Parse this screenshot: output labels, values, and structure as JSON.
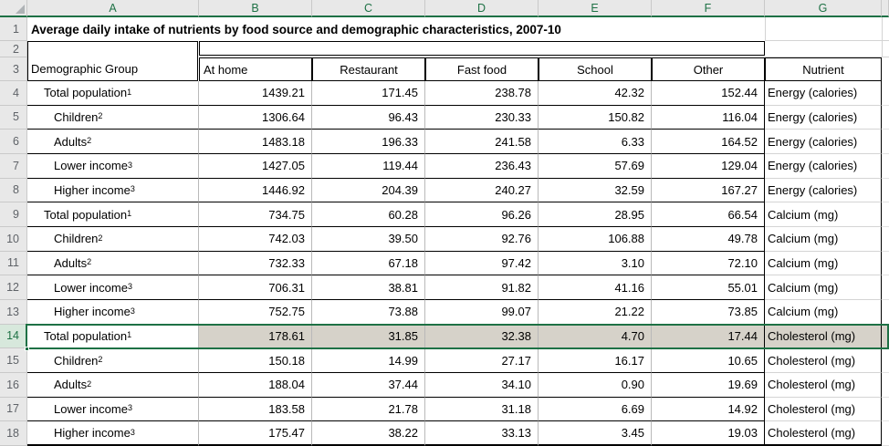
{
  "title": "Average daily intake of nutrients by food source and demographic characteristics, 2007-10",
  "grid": {
    "column_headers": [
      "A",
      "B",
      "C",
      "D",
      "E",
      "F",
      "G"
    ],
    "row_numbers": [
      "1",
      "2",
      "3",
      "4",
      "5",
      "6",
      "7",
      "8",
      "9",
      "10",
      "11",
      "12",
      "13",
      "14",
      "15",
      "16",
      "17",
      "18"
    ]
  },
  "table": {
    "group_header": "Demographic Group",
    "source_headers": [
      "At home",
      "Restaurant",
      "Fast food",
      "School",
      "Other"
    ],
    "nutrient_header": "Nutrient",
    "rows": [
      {
        "group": "Total population",
        "sup": "1",
        "indent": 0,
        "values": [
          "1439.21",
          "171.45",
          "238.78",
          "42.32",
          "152.44"
        ],
        "nutrient": "Energy (calories)"
      },
      {
        "group": "Children",
        "sup": "2",
        "indent": 1,
        "values": [
          "1306.64",
          "96.43",
          "230.33",
          "150.82",
          "116.04"
        ],
        "nutrient": "Energy (calories)"
      },
      {
        "group": "Adults",
        "sup": "2",
        "indent": 1,
        "values": [
          "1483.18",
          "196.33",
          "241.58",
          "6.33",
          "164.52"
        ],
        "nutrient": "Energy (calories)"
      },
      {
        "group": "Lower income",
        "sup": "3",
        "indent": 1,
        "values": [
          "1427.05",
          "119.44",
          "236.43",
          "57.69",
          "129.04"
        ],
        "nutrient": "Energy (calories)"
      },
      {
        "group": "Higher income",
        "sup": "3",
        "indent": 1,
        "values": [
          "1446.92",
          "204.39",
          "240.27",
          "32.59",
          "167.27"
        ],
        "nutrient": "Energy (calories)"
      },
      {
        "group": "Total population",
        "sup": "1",
        "indent": 0,
        "values": [
          "734.75",
          "60.28",
          "96.26",
          "28.95",
          "66.54"
        ],
        "nutrient": "Calcium (mg)"
      },
      {
        "group": "Children",
        "sup": "2",
        "indent": 1,
        "values": [
          "742.03",
          "39.50",
          "92.76",
          "106.88",
          "49.78"
        ],
        "nutrient": "Calcium (mg)"
      },
      {
        "group": "Adults",
        "sup": "2",
        "indent": 1,
        "values": [
          "732.33",
          "67.18",
          "97.42",
          "3.10",
          "72.10"
        ],
        "nutrient": "Calcium (mg)"
      },
      {
        "group": "Lower income",
        "sup": "3",
        "indent": 1,
        "values": [
          "706.31",
          "38.81",
          "91.82",
          "41.16",
          "55.01"
        ],
        "nutrient": "Calcium (mg)"
      },
      {
        "group": "Higher income",
        "sup": "3",
        "indent": 1,
        "values": [
          "752.75",
          "73.88",
          "99.07",
          "21.22",
          "73.85"
        ],
        "nutrient": "Calcium (mg)"
      },
      {
        "group": "Total population",
        "sup": "1",
        "indent": 0,
        "selected": true,
        "values": [
          "178.61",
          "31.85",
          "32.38",
          "4.70",
          "17.44"
        ],
        "nutrient": "Cholesterol (mg)"
      },
      {
        "group": "Children",
        "sup": "2",
        "indent": 1,
        "values": [
          "150.18",
          "14.99",
          "27.17",
          "16.17",
          "10.65"
        ],
        "nutrient": "Cholesterol (mg)"
      },
      {
        "group": "Adults",
        "sup": "2",
        "indent": 1,
        "values": [
          "188.04",
          "37.44",
          "34.10",
          "0.90",
          "19.69"
        ],
        "nutrient": "Cholesterol (mg)"
      },
      {
        "group": "Lower income",
        "sup": "3",
        "indent": 1,
        "values": [
          "183.58",
          "21.78",
          "31.18",
          "6.69",
          "14.92"
        ],
        "nutrient": "Cholesterol (mg)"
      },
      {
        "group": "Higher income",
        "sup": "3",
        "indent": 1,
        "values": [
          "175.47",
          "38.22",
          "33.13",
          "3.45",
          "19.03"
        ],
        "nutrient": "Cholesterol (mg)"
      }
    ]
  },
  "selection": {
    "selected_row": 14,
    "active_cell": "A14"
  },
  "colors": {
    "excel_green": "#1E7145",
    "selection_fill": "#D6D2C9",
    "selected_row_header_bg": "#D7E8DC",
    "header_bg": "#E8E8E8",
    "border_dark": "#000000",
    "gridline_light": "#D4D4D4"
  }
}
